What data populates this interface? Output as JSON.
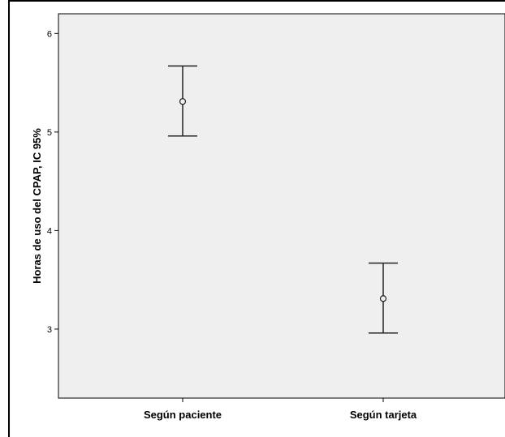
{
  "chart_data": {
    "type": "errorbar",
    "title": "",
    "xlabel": "",
    "ylabel": "Horas de uso del CPAP, IC 95%",
    "ylim": [
      2.3,
      6.2
    ],
    "yticks": [
      3,
      4,
      5,
      6
    ],
    "grid": false,
    "categories": [
      "Según paciente",
      "Según tarjeta"
    ],
    "means": [
      5.31,
      3.31
    ],
    "lower": [
      4.96,
      2.96
    ],
    "upper": [
      5.67,
      3.67
    ],
    "colors": {
      "plot_background": "#efefef",
      "marks": "#222222",
      "axis": "#000000"
    }
  }
}
